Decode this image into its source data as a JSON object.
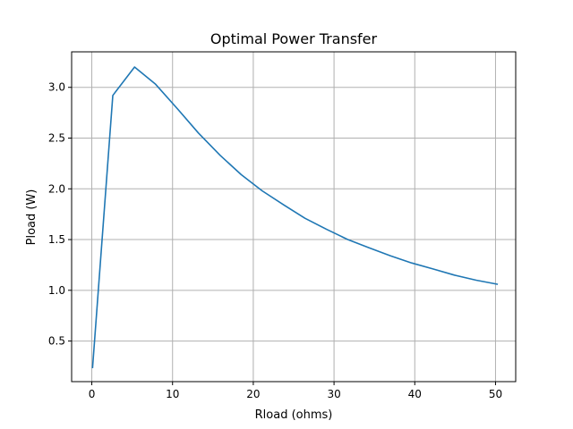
{
  "chart_data": {
    "type": "line",
    "title": "Optimal Power Transfer",
    "xlabel": "Rload (ohms)",
    "ylabel": "Pload (W)",
    "xlim": [
      -2.5,
      52.5
    ],
    "ylim": [
      0.1,
      3.35
    ],
    "xticks": [
      0,
      10,
      20,
      30,
      40,
      50
    ],
    "xtick_labels": [
      "0",
      "10",
      "20",
      "30",
      "40",
      "50"
    ],
    "yticks": [
      0.5,
      1.0,
      1.5,
      2.0,
      2.5,
      3.0
    ],
    "ytick_labels": [
      "0.5",
      "1.0",
      "1.5",
      "2.0",
      "2.5",
      "3.0"
    ],
    "grid": true,
    "series": [
      {
        "color": "#1f77b4",
        "x": [
          0.1,
          2.6,
          5.3,
          7.9,
          10.6,
          13.2,
          15.9,
          18.5,
          21.1,
          23.8,
          26.4,
          29.1,
          31.7,
          34.3,
          37.0,
          39.6,
          42.3,
          44.9,
          47.6,
          50.2
        ],
        "y": [
          0.24,
          2.92,
          3.2,
          3.03,
          2.79,
          2.55,
          2.33,
          2.14,
          1.98,
          1.84,
          1.71,
          1.6,
          1.5,
          1.42,
          1.34,
          1.27,
          1.21,
          1.15,
          1.1,
          1.06
        ]
      }
    ]
  }
}
